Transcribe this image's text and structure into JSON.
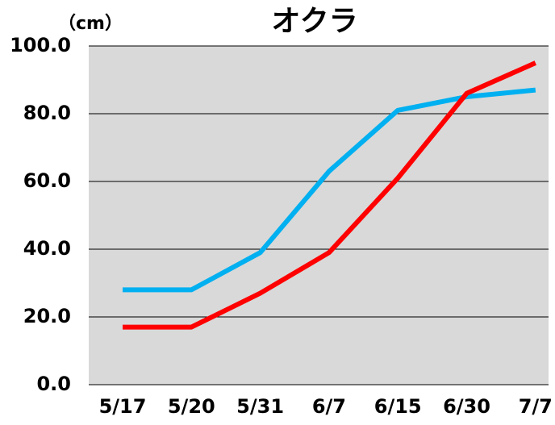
{
  "chart_data": {
    "type": "line",
    "title": "オクラ",
    "y_axis_label": "（cm）",
    "categories": [
      "5/17",
      "5/20",
      "5/31",
      "6/7",
      "6/15",
      "6/30",
      "7/7"
    ],
    "series": [
      {
        "color": "#00b0f0",
        "values": [
          28,
          28,
          39,
          63,
          81,
          85,
          87
        ]
      },
      {
        "color": "#ff0000",
        "values": [
          17,
          17,
          27,
          39,
          61,
          86,
          95
        ]
      }
    ],
    "ylim": [
      0,
      100
    ],
    "yticks": [
      {
        "value": 0,
        "label": "0.0"
      },
      {
        "value": 20,
        "label": "20.0"
      },
      {
        "value": 40,
        "label": "40.0"
      },
      {
        "value": 60,
        "label": "60.0"
      },
      {
        "value": 80,
        "label": "80.0"
      },
      {
        "value": 100,
        "label": "100.0"
      }
    ],
    "grid": true
  }
}
